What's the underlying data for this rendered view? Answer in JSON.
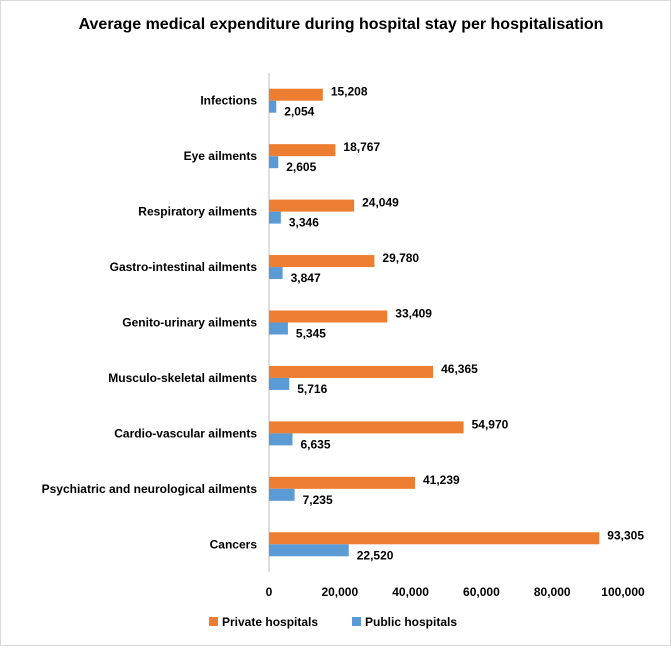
{
  "chart_data": {
    "type": "bar",
    "orientation": "horizontal",
    "title": "Average medical expenditure during hospital stay per hospitalisation",
    "categories": [
      "Infections",
      "Eye ailments",
      "Respiratory ailments",
      "Gastro-intestinal ailments",
      "Genito-urinary ailments",
      "Musculo-skeletal ailments",
      "Cardio-vascular ailments",
      "Psychiatric and neurological ailments",
      "Cancers"
    ],
    "series": [
      {
        "name": "Private hospitals",
        "color": "#ed7d31",
        "values": [
          15208,
          18767,
          24049,
          29780,
          33409,
          46365,
          54970,
          41239,
          93305
        ],
        "labels": [
          "15,208",
          "18,767",
          "24,049",
          "29,780",
          "33,409",
          "46,365",
          "54,970",
          "41,239",
          "93,305"
        ]
      },
      {
        "name": "Public hospitals",
        "color": "#5b9bd5",
        "values": [
          2054,
          2605,
          3346,
          3847,
          5345,
          5716,
          6635,
          7235,
          22520
        ],
        "labels": [
          "2,054",
          "2,605",
          "3,346",
          "3,847",
          "5,345",
          "5,716",
          "6,635",
          "7,235",
          "22,520"
        ]
      }
    ],
    "xlim": [
      0,
      100000
    ],
    "xticks": [
      0,
      20000,
      40000,
      60000,
      80000,
      100000
    ],
    "xtick_labels": [
      "0",
      "20,000",
      "40,000",
      "60,000",
      "80,000",
      "100,000"
    ],
    "grid": false,
    "legend_position": "bottom"
  }
}
